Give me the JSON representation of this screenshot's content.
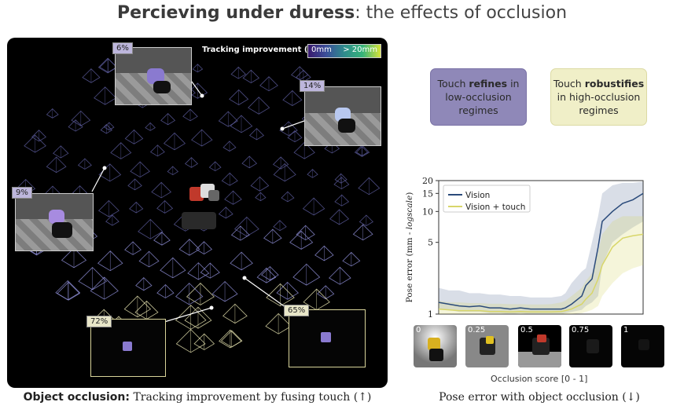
{
  "title": {
    "bold": "Percieving under duress",
    "rest": ": the effects of occlusion"
  },
  "left_panel": {
    "colorbar_label": "Tracking improvement (↑)",
    "colorbar_min": "0mm",
    "colorbar_max": "> 20mm",
    "thumbnails": [
      {
        "label": "6%",
        "style": "purple"
      },
      {
        "label": "14%",
        "style": "purple"
      },
      {
        "label": "9%",
        "style": "purple"
      },
      {
        "label": "72%",
        "style": "yellow"
      },
      {
        "label": "65%",
        "style": "yellow"
      }
    ],
    "caption_bold": "Object occlusion:",
    "caption_rest": " Tracking improvement by fusing touch (↑)"
  },
  "callouts": {
    "left": {
      "pre": "Touch ",
      "bold": "refines",
      "post": " in low-occlusion regimes"
    },
    "right": {
      "pre": "Touch ",
      "bold": "robustifies",
      "post": " in high-occlusion regimes"
    }
  },
  "chart_data": {
    "type": "line",
    "ylabel_main": "Pose error (mm - ",
    "ylabel_italic": "logscale",
    "ylabel_end": ")",
    "xlabel": "Occlusion score [0 - 1]",
    "y_scale": "log",
    "ylim": [
      1,
      20
    ],
    "xlim": [
      0,
      1
    ],
    "y_ticks": [
      1,
      5,
      10,
      15,
      20
    ],
    "legend_position": "top-left",
    "series": [
      {
        "name": "Vision",
        "color": "#2a4a7a",
        "x": [
          0.0,
          0.05,
          0.1,
          0.15,
          0.2,
          0.25,
          0.3,
          0.35,
          0.4,
          0.45,
          0.5,
          0.55,
          0.6,
          0.62,
          0.65,
          0.7,
          0.72,
          0.75,
          0.78,
          0.8,
          0.85,
          0.9,
          0.95,
          1.0
        ],
        "y": [
          1.3,
          1.25,
          1.2,
          1.18,
          1.2,
          1.15,
          1.15,
          1.12,
          1.15,
          1.12,
          1.12,
          1.12,
          1.12,
          1.15,
          1.25,
          1.5,
          1.9,
          2.2,
          4.5,
          8.0,
          10.0,
          12.0,
          13.0,
          15.0
        ],
        "band": [
          [
            1.1,
            1.8
          ],
          [
            1.1,
            1.7
          ],
          [
            1.05,
            1.7
          ],
          [
            1.05,
            1.6
          ],
          [
            1.05,
            1.6
          ],
          [
            1.02,
            1.55
          ],
          [
            1.02,
            1.55
          ],
          [
            1.0,
            1.5
          ],
          [
            1.02,
            1.5
          ],
          [
            1.0,
            1.45
          ],
          [
            1.0,
            1.45
          ],
          [
            1.0,
            1.45
          ],
          [
            1.0,
            1.5
          ],
          [
            1.02,
            1.6
          ],
          [
            1.05,
            2.0
          ],
          [
            1.1,
            2.6
          ],
          [
            1.2,
            2.8
          ],
          [
            1.3,
            5.0
          ],
          [
            1.5,
            9.0
          ],
          [
            3.0,
            15.0
          ],
          [
            5.0,
            18.0
          ],
          [
            6.0,
            19.0
          ],
          [
            7.0,
            19.0
          ],
          [
            8.0,
            19.5
          ]
        ]
      },
      {
        "name": "Vision + touch",
        "color": "#d8d66a",
        "x": [
          0.0,
          0.05,
          0.1,
          0.15,
          0.2,
          0.25,
          0.3,
          0.35,
          0.4,
          0.45,
          0.5,
          0.55,
          0.6,
          0.62,
          0.65,
          0.7,
          0.72,
          0.75,
          0.78,
          0.8,
          0.85,
          0.9,
          0.95,
          1.0
        ],
        "y": [
          1.12,
          1.1,
          1.08,
          1.08,
          1.08,
          1.06,
          1.06,
          1.05,
          1.06,
          1.05,
          1.05,
          1.05,
          1.06,
          1.08,
          1.12,
          1.25,
          1.4,
          1.6,
          2.2,
          3.0,
          4.5,
          5.5,
          5.8,
          6.0
        ],
        "band": [
          [
            1.0,
            1.35
          ],
          [
            1.0,
            1.3
          ],
          [
            1.0,
            1.3
          ],
          [
            1.0,
            1.28
          ],
          [
            1.0,
            1.28
          ],
          [
            1.0,
            1.26
          ],
          [
            1.0,
            1.26
          ],
          [
            1.0,
            1.25
          ],
          [
            1.0,
            1.25
          ],
          [
            1.0,
            1.24
          ],
          [
            1.0,
            1.24
          ],
          [
            1.0,
            1.25
          ],
          [
            1.0,
            1.3
          ],
          [
            1.0,
            1.35
          ],
          [
            1.0,
            1.5
          ],
          [
            1.02,
            1.8
          ],
          [
            1.05,
            2.1
          ],
          [
            1.1,
            2.5
          ],
          [
            1.2,
            4.0
          ],
          [
            1.5,
            6.0
          ],
          [
            2.0,
            8.0
          ],
          [
            2.5,
            9.0
          ],
          [
            2.8,
            9.0
          ],
          [
            3.0,
            9.0
          ]
        ]
      }
    ]
  },
  "occlusion_strip": [
    "0",
    "0.25",
    "0.5",
    "0.75",
    "1"
  ],
  "right_caption": "Pose error with object occlusion (↓)",
  "colors": {
    "purple_box": "#8f88b8",
    "yellow_box": "#f0efc8",
    "vision": "#2a4a7a",
    "touch": "#d8d66a"
  }
}
